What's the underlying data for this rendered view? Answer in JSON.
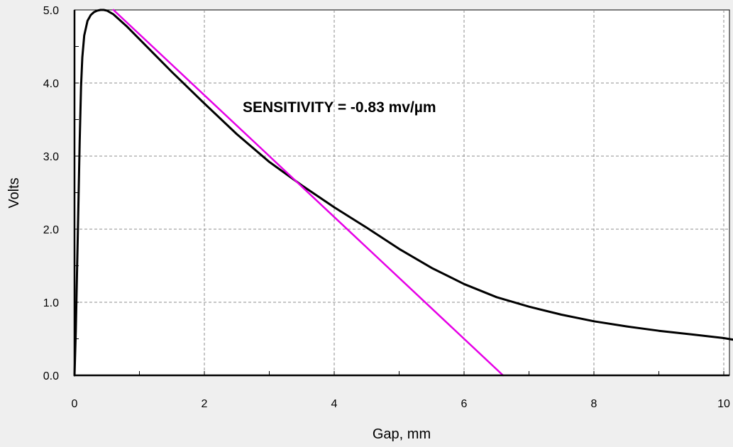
{
  "chart_data": {
    "type": "line",
    "xlabel": "Gap, mm",
    "ylabel": "Volts",
    "xlim": [
      0,
      10.2
    ],
    "ylim": [
      0,
      5
    ],
    "grid": true,
    "x_ticks": [
      0,
      2,
      4,
      6,
      8,
      10
    ],
    "x_tick_labels": [
      "0",
      "2",
      "4",
      "6",
      "8",
      "10"
    ],
    "y_ticks": [
      0,
      1,
      2,
      3,
      4,
      5
    ],
    "y_tick_labels": [
      "0.0",
      "1.0",
      "2.0",
      "3.0",
      "4.0",
      "5.0"
    ],
    "annotation": "SENSITIVITY = -0.83 mv/µm",
    "series": [
      {
        "color": "#000000",
        "x": [
          0.0,
          0.02,
          0.05,
          0.08,
          0.1,
          0.12,
          0.15,
          0.2,
          0.25,
          0.3,
          0.35,
          0.4,
          0.45,
          0.5,
          0.6,
          0.8,
          1.0,
          1.2,
          1.5,
          2.0,
          2.5,
          3.0,
          3.5,
          4.0,
          4.5,
          5.0,
          5.5,
          6.0,
          6.5,
          7.0,
          7.5,
          8.0,
          8.5,
          9.0,
          9.5,
          10.0,
          10.2
        ],
        "y": [
          0.0,
          0.6,
          1.9,
          3.2,
          3.95,
          4.35,
          4.65,
          4.85,
          4.93,
          4.97,
          4.99,
          5.0,
          5.0,
          4.99,
          4.94,
          4.78,
          4.6,
          4.42,
          4.15,
          3.72,
          3.3,
          2.92,
          2.6,
          2.3,
          2.02,
          1.73,
          1.47,
          1.25,
          1.07,
          0.94,
          0.83,
          0.74,
          0.67,
          0.61,
          0.56,
          0.51,
          0.48
        ]
      },
      {
        "color": "#e600e6",
        "x": [
          0.6,
          6.6
        ],
        "y": [
          5.0,
          0.0
        ]
      }
    ]
  }
}
